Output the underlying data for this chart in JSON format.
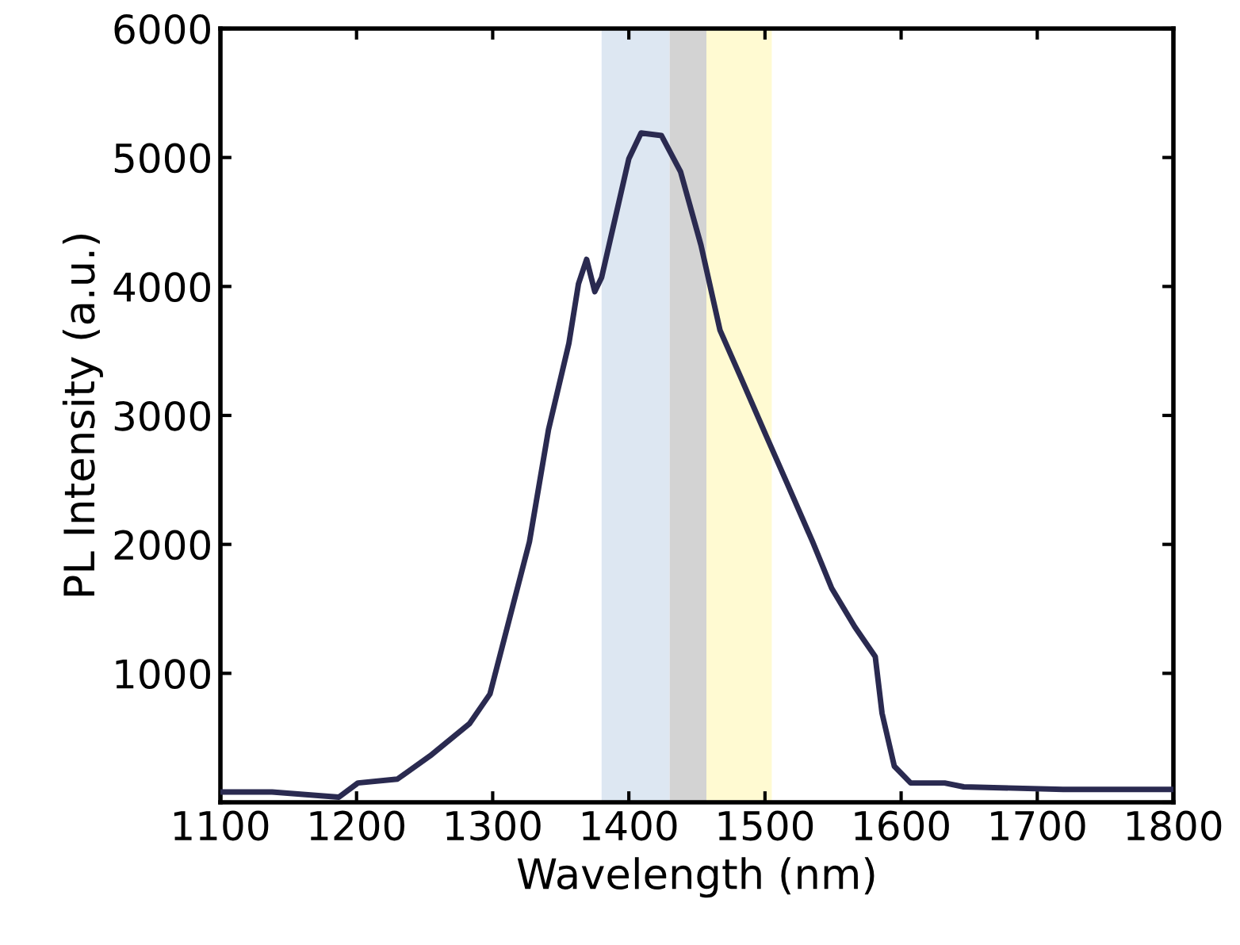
{
  "chart_data": {
    "type": "line",
    "xlabel": "Wavelength (nm)",
    "ylabel": "PL Intensity (a.u.)",
    "x": [
      1100,
      1138,
      1187,
      1201,
      1230,
      1254,
      1283,
      1298,
      1312,
      1327,
      1341,
      1356,
      1363,
      1369,
      1375,
      1380,
      1390,
      1400,
      1409,
      1424,
      1438,
      1453,
      1467,
      1482,
      1501,
      1516,
      1535,
      1549,
      1566,
      1581,
      1586,
      1595,
      1607,
      1632,
      1646,
      1719,
      1800
    ],
    "series": [
      {
        "color": "#2a2a50",
        "values": [
          80,
          80,
          40,
          150,
          180,
          360,
          610,
          840,
          1410,
          2020,
          2890,
          3560,
          4020,
          4210,
          3960,
          4070,
          4530,
          4990,
          5190,
          5170,
          4890,
          4320,
          3660,
          3300,
          2840,
          2480,
          2020,
          1660,
          1360,
          1130,
          690,
          280,
          150,
          150,
          120,
          100,
          100
        ]
      }
    ],
    "xlim": [
      1100,
      1800
    ],
    "xticks": [
      1100,
      1200,
      1300,
      1400,
      1500,
      1600,
      1700,
      1800
    ],
    "ylim": [
      0,
      6000
    ],
    "yticks": [
      {
        "value": 0,
        "label": null
      },
      1000,
      2000,
      3000,
      4000,
      5000,
      6000
    ],
    "bands": [
      {
        "axis": "x",
        "from": 1380,
        "to": 1430,
        "color": "#dde7f2"
      },
      {
        "axis": "x",
        "from": 1430,
        "to": 1457,
        "color": "#d3d3d3"
      },
      {
        "axis": "x",
        "from": 1457,
        "to": 1505,
        "color": "#fffad2"
      }
    ],
    "grid": false,
    "legend": false,
    "marker": "none",
    "line_style": "solid"
  }
}
